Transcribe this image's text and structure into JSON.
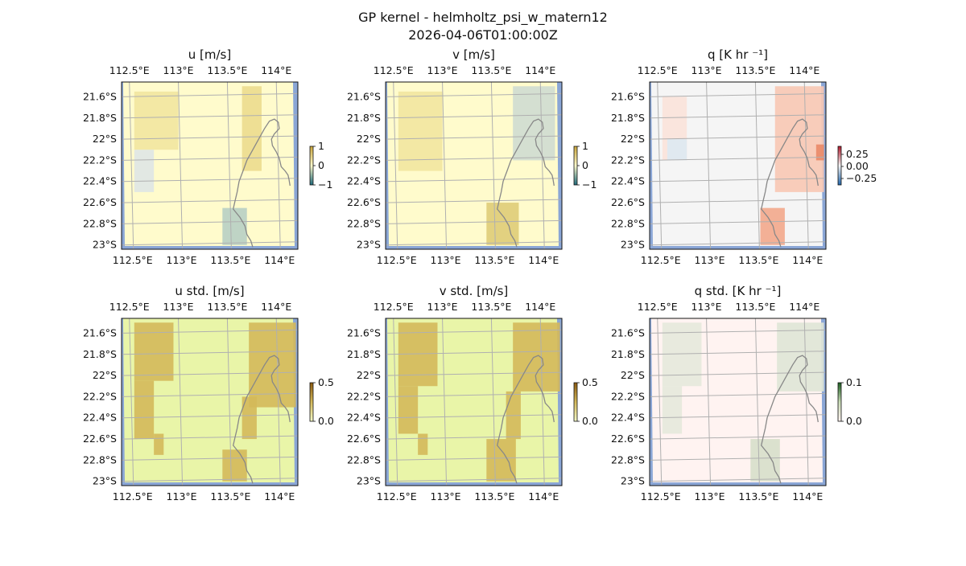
{
  "figure": {
    "title_line1": "GP kernel - helmholtz_psi_w_matern12",
    "title_line2": "2026-04-06T01:00:00Z"
  },
  "colors": {
    "land_gray": "#888888",
    "sea_blue": "#8aa6d6",
    "grid": "#b0b0b0"
  },
  "chart_data": [
    {
      "type": "heatmap",
      "title": "u [m/s]",
      "x_ticks": [
        "112.5°E",
        "113°E",
        "113.5°E",
        "114°E"
      ],
      "y_ticks": [
        "21.6°S",
        "21.8°S",
        "22°S",
        "22.2°S",
        "22.4°S",
        "22.6°S",
        "22.8°S",
        "23°S"
      ],
      "colorbar": {
        "ticks": [
          "1",
          "0",
          "−1"
        ],
        "range": [
          -1,
          1
        ]
      },
      "colormap": "yellow-blue diverging",
      "base_color": "#fffbcc",
      "patches": [
        {
          "lon": [
            112.55,
            113.0
          ],
          "lat": [
            -21.55,
            -22.1
          ],
          "color": "#f2e6a0"
        },
        {
          "lon": [
            113.65,
            113.85
          ],
          "lat": [
            -21.5,
            -22.3
          ],
          "color": "#ecdc8e"
        },
        {
          "lon": [
            113.45,
            113.7
          ],
          "lat": [
            -22.65,
            -23.0
          ],
          "color": "#b8cfc4"
        },
        {
          "lon": [
            112.55,
            112.75
          ],
          "lat": [
            -22.1,
            -22.5
          ],
          "color": "#dfe6e6"
        }
      ]
    },
    {
      "type": "heatmap",
      "title": "v [m/s]",
      "x_ticks": [
        "112.5°E",
        "113°E",
        "113.5°E",
        "114°E"
      ],
      "y_ticks": [
        "21.6°S",
        "21.8°S",
        "22°S",
        "22.2°S",
        "22.4°S",
        "22.6°S",
        "22.8°S",
        "23°S"
      ],
      "colorbar": {
        "ticks": [
          "1",
          "0",
          "−1"
        ],
        "range": [
          -1,
          1
        ]
      },
      "colormap": "yellow-blue diverging",
      "base_color": "#fffbcc",
      "patches": [
        {
          "lon": [
            112.55,
            113.0
          ],
          "lat": [
            -21.55,
            -22.3
          ],
          "color": "#f2e6a0"
        },
        {
          "lon": [
            113.72,
            114.15
          ],
          "lat": [
            -21.5,
            -22.2
          ],
          "color": "#cfdcd2"
        },
        {
          "lon": [
            113.45,
            113.78
          ],
          "lat": [
            -22.6,
            -23.0
          ],
          "color": "#dfcc78"
        }
      ]
    },
    {
      "type": "heatmap",
      "title": "q [K hr ⁻¹]",
      "x_ticks": [
        "112.5°E",
        "113°E",
        "113.5°E",
        "114°E"
      ],
      "y_ticks": [
        "21.6°S",
        "21.8°S",
        "22°S",
        "22.2°S",
        "22.4°S",
        "22.6°S",
        "22.8°S",
        "23°S"
      ],
      "colorbar": {
        "ticks": [
          "0.25",
          "0.00",
          "−0.25"
        ],
        "range": [
          -0.3,
          0.3
        ]
      },
      "colormap": "red-blue diverging",
      "base_color": "#f5f5f5",
      "patches": [
        {
          "lon": [
            112.55,
            112.8
          ],
          "lat": [
            -21.6,
            -22.2
          ],
          "color": "#fbe3da"
        },
        {
          "lon": [
            112.6,
            112.8
          ],
          "lat": [
            -22.0,
            -22.2
          ],
          "color": "#dde9f2"
        },
        {
          "lon": [
            113.7,
            114.2
          ],
          "lat": [
            -21.5,
            -22.5
          ],
          "color": "#f8c8b4"
        },
        {
          "lon": [
            113.55,
            113.8
          ],
          "lat": [
            -22.65,
            -23.0
          ],
          "color": "#f3a98c"
        },
        {
          "lon": [
            114.12,
            114.2
          ],
          "lat": [
            -22.05,
            -22.2
          ],
          "color": "#e98a68"
        }
      ]
    },
    {
      "type": "heatmap",
      "title": "u std. [m/s]",
      "x_ticks": [
        "112.5°E",
        "113°E",
        "113.5°E",
        "114°E"
      ],
      "y_ticks": [
        "21.6°S",
        "21.8°S",
        "22°S",
        "22.2°S",
        "22.4°S",
        "22.6°S",
        "22.8°S",
        "23°S"
      ],
      "colorbar": {
        "ticks": [
          "0.5",
          "0.0"
        ],
        "range": [
          0,
          0.5
        ]
      },
      "colormap": "yellow-brown sequential",
      "base_color": "#e9f5a8",
      "patches": [
        {
          "lon": [
            112.55,
            112.95
          ],
          "lat": [
            -21.5,
            -22.05
          ],
          "color": "#d4b95a"
        },
        {
          "lon": [
            112.55,
            112.75
          ],
          "lat": [
            -22.05,
            -22.6
          ],
          "color": "#d4b95a"
        },
        {
          "lon": [
            112.75,
            112.85
          ],
          "lat": [
            -22.55,
            -22.75
          ],
          "color": "#d4b95a"
        },
        {
          "lon": [
            113.72,
            114.2
          ],
          "lat": [
            -21.5,
            -22.3
          ],
          "color": "#d4b95a"
        },
        {
          "lon": [
            113.65,
            113.8
          ],
          "lat": [
            -22.2,
            -22.6
          ],
          "color": "#d4b95a"
        },
        {
          "lon": [
            113.45,
            113.7
          ],
          "lat": [
            -22.7,
            -23.0
          ],
          "color": "#d4b95a"
        }
      ]
    },
    {
      "type": "heatmap",
      "title": "v std. [m/s]",
      "x_ticks": [
        "112.5°E",
        "113°E",
        "113.5°E",
        "114°E"
      ],
      "y_ticks": [
        "21.6°S",
        "21.8°S",
        "22°S",
        "22.2°S",
        "22.4°S",
        "22.6°S",
        "22.8°S",
        "23°S"
      ],
      "colorbar": {
        "ticks": [
          "0.5",
          "0.0"
        ],
        "range": [
          0,
          0.5
        ]
      },
      "colormap": "yellow-brown sequential",
      "base_color": "#e9f5a8",
      "patches": [
        {
          "lon": [
            112.55,
            112.95
          ],
          "lat": [
            -21.5,
            -22.1
          ],
          "color": "#d4b95a"
        },
        {
          "lon": [
            112.55,
            112.75
          ],
          "lat": [
            -22.1,
            -22.55
          ],
          "color": "#d4b95a"
        },
        {
          "lon": [
            112.75,
            112.85
          ],
          "lat": [
            -22.55,
            -22.75
          ],
          "color": "#d4b95a"
        },
        {
          "lon": [
            113.72,
            114.2
          ],
          "lat": [
            -21.5,
            -22.15
          ],
          "color": "#d4b95a"
        },
        {
          "lon": [
            113.65,
            113.8
          ],
          "lat": [
            -22.15,
            -22.6
          ],
          "color": "#d4b95a"
        },
        {
          "lon": [
            113.45,
            113.75
          ],
          "lat": [
            -22.6,
            -23.0
          ],
          "color": "#d4b95a"
        }
      ]
    },
    {
      "type": "heatmap",
      "title": "q std. [K hr ⁻¹]",
      "x_ticks": [
        "112.5°E",
        "113°E",
        "113.5°E",
        "114°E"
      ],
      "y_ticks": [
        "21.6°S",
        "21.8°S",
        "22°S",
        "22.2°S",
        "22.4°S",
        "22.6°S",
        "22.8°S",
        "23°S"
      ],
      "colorbar": {
        "ticks": [
          "0.1",
          "0.0"
        ],
        "range": [
          0,
          0.1
        ]
      },
      "colormap": "pink-green sequential",
      "base_color": "#fff3f1",
      "patches": [
        {
          "lon": [
            112.55,
            112.95
          ],
          "lat": [
            -21.5,
            -22.1
          ],
          "color": "#e6e9dc"
        },
        {
          "lon": [
            112.55,
            112.75
          ],
          "lat": [
            -22.1,
            -22.55
          ],
          "color": "#e6e9dc"
        },
        {
          "lon": [
            113.72,
            114.2
          ],
          "lat": [
            -21.5,
            -22.15
          ],
          "color": "#dfe5d6"
        },
        {
          "lon": [
            113.45,
            113.75
          ],
          "lat": [
            -22.6,
            -23.0
          ],
          "color": "#d7dfca"
        }
      ]
    }
  ]
}
